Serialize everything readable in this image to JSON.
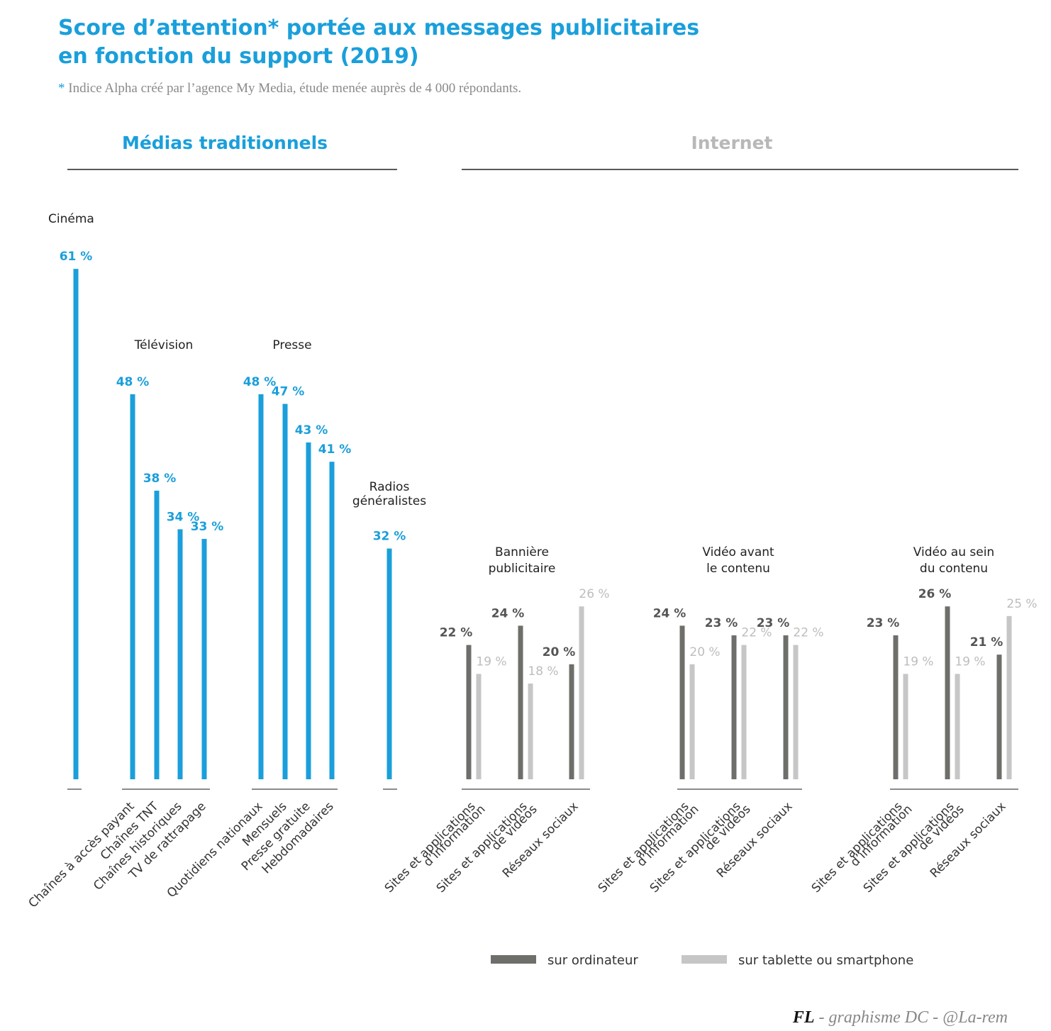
{
  "chart_data": {
    "type": "bar",
    "title_lines": [
      "Score d’attention* portée aux messages publicitaires",
      "en fonction du support (2019)"
    ],
    "subtitle_star": "*",
    "subtitle": "Indice Alpha créé par l’agence My Media, étude menée auprès de 4 000 répondants.",
    "unit": "%",
    "sections": [
      {
        "name": "Médias traditionnels",
        "color": "#1a9fdb",
        "groups": [
          {
            "label_lines": [
              "Cinéma"
            ],
            "bars": [
              {
                "category": "",
                "values": [
                  61
                ]
              }
            ]
          },
          {
            "label_lines": [
              "Télévision"
            ],
            "bars": [
              {
                "category": "Chaînes à accès payant",
                "values": [
                  48
                ]
              },
              {
                "category": "Chaînes TNT",
                "values": [
                  38
                ]
              },
              {
                "category": "Chaînes historiques",
                "values": [
                  34
                ]
              },
              {
                "category": "TV de rattrapage",
                "values": [
                  33
                ]
              }
            ]
          },
          {
            "label_lines": [
              "Presse"
            ],
            "bars": [
              {
                "category": "Quotidiens nationaux",
                "values": [
                  48
                ]
              },
              {
                "category": "Mensuels",
                "values": [
                  47
                ]
              },
              {
                "category": "Presse gratuite",
                "values": [
                  43
                ]
              },
              {
                "category": "Hebdomadaires",
                "values": [
                  41
                ]
              }
            ]
          },
          {
            "label_lines": [
              "Radios",
              "généralistes"
            ],
            "bars": [
              {
                "category": "",
                "values": [
                  32
                ]
              }
            ]
          }
        ]
      },
      {
        "name": "Internet",
        "color": "#b8b8b8",
        "groups": [
          {
            "label_lines": [
              "Bannière",
              "publicitaire"
            ],
            "bars": [
              {
                "category_lines": [
                  "Sites et applications",
                  "d’information"
                ],
                "values": [
                  22,
                  19
                ]
              },
              {
                "category_lines": [
                  "Sites et applications",
                  "de vidéos"
                ],
                "values": [
                  24,
                  18
                ]
              },
              {
                "category_lines": [
                  "Réseaux sociaux"
                ],
                "values": [
                  20,
                  26
                ]
              }
            ]
          },
          {
            "label_lines": [
              "Vidéo avant",
              "le contenu"
            ],
            "bars": [
              {
                "category_lines": [
                  "Sites et applications",
                  "d’information"
                ],
                "values": [
                  24,
                  20
                ]
              },
              {
                "category_lines": [
                  "Sites et applications",
                  "de vidéos"
                ],
                "values": [
                  23,
                  22
                ]
              },
              {
                "category_lines": [
                  "Réseaux sociaux"
                ],
                "values": [
                  23,
                  22
                ]
              }
            ]
          },
          {
            "label_lines": [
              "Vidéo au sein",
              "du contenu"
            ],
            "bars": [
              {
                "category_lines": [
                  "Sites et applications",
                  "d’information"
                ],
                "values": [
                  23,
                  19
                ]
              },
              {
                "category_lines": [
                  "Sites et applications",
                  "de vidéos"
                ],
                "values": [
                  26,
                  19
                ]
              },
              {
                "category_lines": [
                  "Réseaux sociaux"
                ],
                "values": [
                  21,
                  25
                ]
              }
            ]
          }
        ]
      }
    ],
    "series": [
      {
        "name": "sur ordinateur",
        "color": "#6e6e6a"
      },
      {
        "name": "sur tablette ou smartphone",
        "color": "#c6c6c6"
      }
    ],
    "legend_position": "bottom-right",
    "axis_visible": false,
    "grid": false
  },
  "credit": {
    "bold": "FL",
    "rest": " - graphisme DC - @La-rem"
  }
}
